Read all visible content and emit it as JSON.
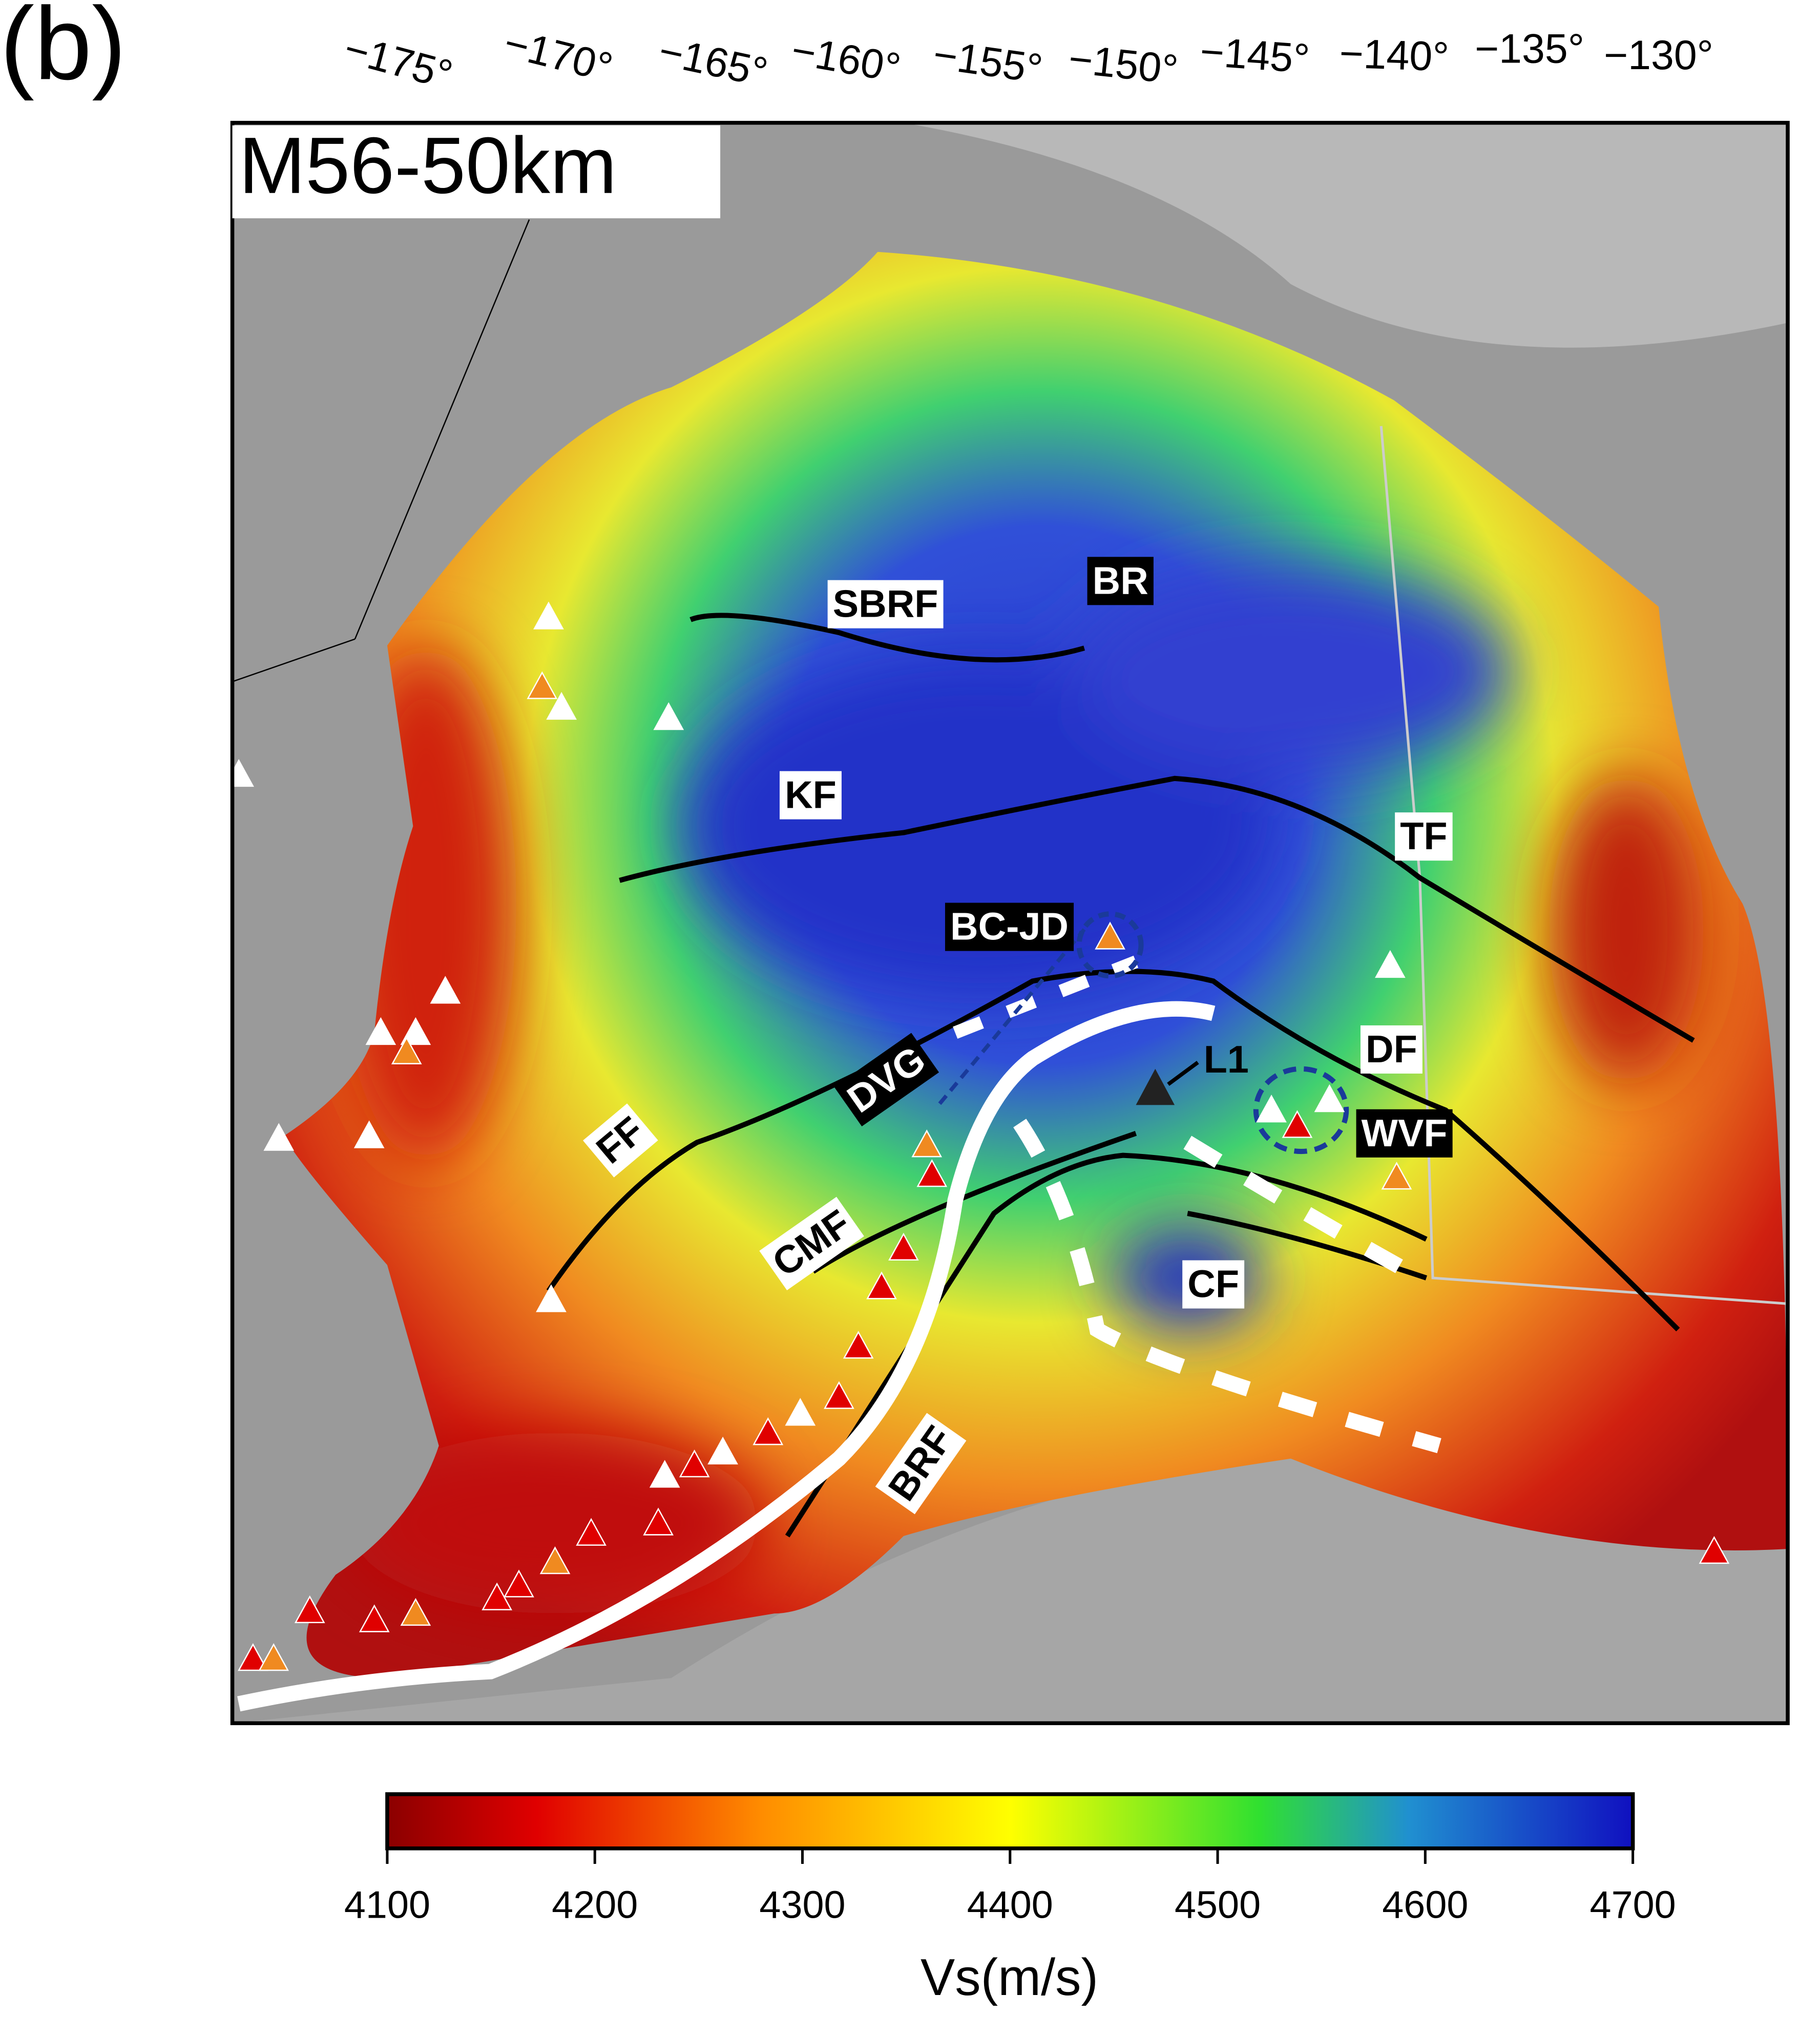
{
  "panel_label": "(b)",
  "map": {
    "title": "M56-50km",
    "lon_labels": [
      "−175°",
      "−170°",
      "−165°",
      "−160°",
      "−155°",
      "−150°",
      "−145°",
      "−140°",
      "−135°",
      "−130°"
    ],
    "feature_labels": [
      "SBRF",
      "BR",
      "KF",
      "TF",
      "BC-JD",
      "DVG",
      "DF",
      "L1",
      "WVF",
      "FF",
      "CMF",
      "CF",
      "BRF"
    ]
  },
  "colorbar": {
    "label": "Vs(m/s)",
    "lim": [
      4100,
      4700
    ],
    "ticks": [
      4100,
      4200,
      4300,
      4400,
      4500,
      4600,
      4700
    ]
  }
}
